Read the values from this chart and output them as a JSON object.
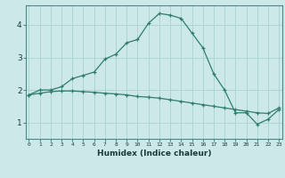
{
  "xlabel": "Humidex (Indice chaleur)",
  "x": [
    0,
    1,
    2,
    3,
    4,
    5,
    6,
    7,
    8,
    9,
    10,
    11,
    12,
    13,
    14,
    15,
    16,
    17,
    18,
    19,
    20,
    21,
    22,
    23
  ],
  "line1": [
    1.85,
    2.0,
    2.0,
    2.1,
    2.35,
    2.45,
    2.55,
    2.95,
    3.1,
    3.45,
    3.55,
    4.05,
    4.35,
    4.3,
    4.2,
    3.75,
    3.3,
    2.5,
    2.0,
    1.3,
    1.3,
    0.95,
    1.1,
    1.4
  ],
  "line2": [
    1.85,
    1.9,
    1.95,
    1.97,
    1.97,
    1.95,
    1.93,
    1.9,
    1.88,
    1.85,
    1.8,
    1.78,
    1.75,
    1.7,
    1.65,
    1.6,
    1.55,
    1.5,
    1.45,
    1.4,
    1.35,
    1.3,
    1.28,
    1.45
  ],
  "line_color": "#2e7d6e",
  "bg_color": "#cce8e8",
  "grid_color": "#aed4d4",
  "ylim": [
    0.5,
    4.6
  ],
  "xlim": [
    -0.3,
    23.3
  ],
  "yticks": [
    1,
    2,
    3,
    4
  ],
  "xticks": [
    0,
    1,
    2,
    3,
    4,
    5,
    6,
    7,
    8,
    9,
    10,
    11,
    12,
    13,
    14,
    15,
    16,
    17,
    18,
    19,
    20,
    21,
    22,
    23
  ]
}
